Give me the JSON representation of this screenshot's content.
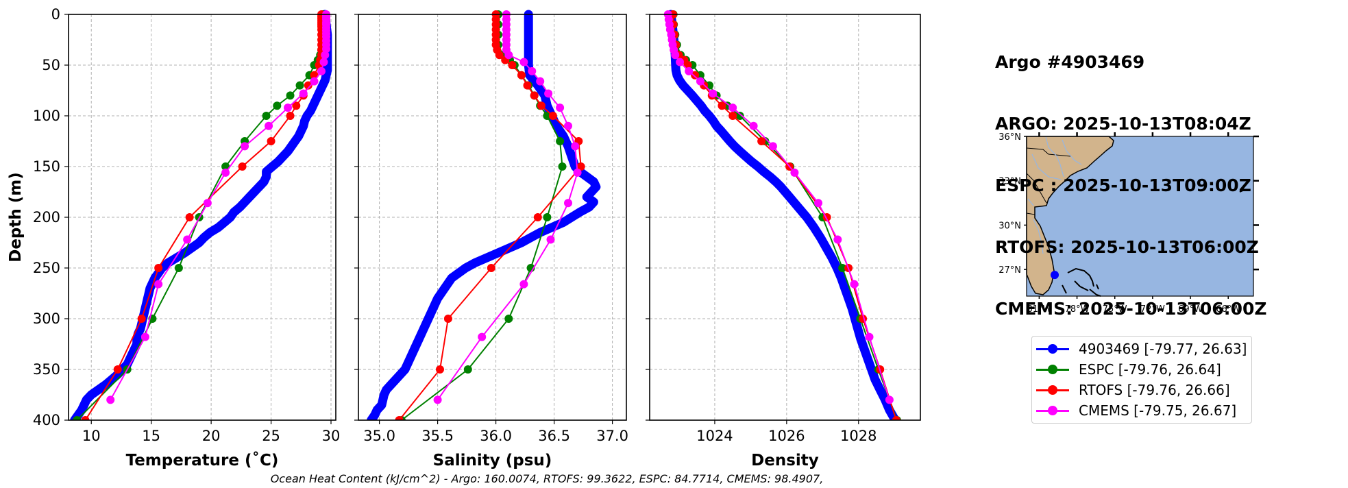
{
  "header": {
    "lines": [
      "Argo #4903469",
      "ARGO: 2025-10-13T08:04Z",
      "ESPC : 2025-10-13T09:00Z",
      "RTOFS: 2025-10-13T06:00Z",
      "CMEMS: 2025-10-13T06:00Z"
    ]
  },
  "footer": {
    "ohc_text": "Ocean Heat Content (kJ/cm^2) - Argo: 160.0074,  RTOFS: 99.3622,  ESPC: 84.7714,  CMEMS: 98.4907,"
  },
  "legend": {
    "placement": "lower-right",
    "items": [
      {
        "label": "4903469 [-79.77, 26.63]",
        "color": "#0000ff"
      },
      {
        "label": "ESPC [-79.76, 26.64]",
        "color": "#008000"
      },
      {
        "label": "RTOFS [-79.76, 26.66]",
        "color": "#ff0000"
      },
      {
        "label": "CMEMS [-79.75, 26.67]",
        "color": "#ff00ff"
      }
    ]
  },
  "map": {
    "lat_labels": [
      "36°N",
      "33°N",
      "30°N",
      "27°N"
    ],
    "lon_labels": [
      "81°W",
      "78°W",
      "75°W",
      "72°W",
      "69°W",
      "66°W"
    ],
    "lat_range": [
      25.2,
      36.0
    ],
    "lon_range": [
      -82.0,
      -64.0
    ],
    "float_position": {
      "lon": -79.77,
      "lat": 26.63
    },
    "colors": {
      "ocean": "#97b6e1",
      "land": "#d2b48c",
      "marker": "#0000ff"
    }
  },
  "chart_data": [
    {
      "type": "line",
      "title": "",
      "xlabel": "Temperature (˚C)",
      "ylabel": "Depth (m)",
      "xlim": [
        8.1,
        30.4
      ],
      "ylim": [
        400,
        0
      ],
      "xticks": [
        10,
        15,
        20,
        25,
        30
      ],
      "yticks": [
        0,
        50,
        100,
        150,
        200,
        250,
        300,
        350,
        400
      ],
      "grid": true,
      "series": [
        {
          "name": "4903469",
          "color": "#0000ff",
          "style": "thick",
          "depth": [
            0,
            10,
            20,
            30,
            40,
            50,
            55,
            60,
            65,
            70,
            75,
            80,
            85,
            90,
            95,
            100,
            105,
            110,
            115,
            120,
            125,
            130,
            135,
            140,
            145,
            150,
            155,
            160,
            165,
            170,
            175,
            180,
            185,
            190,
            195,
            200,
            205,
            210,
            215,
            220,
            225,
            230,
            235,
            240,
            245,
            250,
            255,
            260,
            265,
            270,
            275,
            280,
            285,
            290,
            295,
            300,
            305,
            310,
            315,
            320,
            325,
            330,
            335,
            340,
            345,
            350,
            355,
            360,
            365,
            370,
            375,
            380,
            385,
            390,
            395,
            400
          ],
          "values": [
            29.5,
            29.6,
            29.7,
            29.7,
            29.7,
            29.7,
            29.7,
            29.6,
            29.5,
            29.3,
            29.1,
            28.9,
            28.7,
            28.5,
            28.3,
            28.0,
            27.8,
            27.7,
            27.5,
            27.3,
            27.0,
            26.7,
            26.4,
            26.0,
            25.6,
            25.1,
            24.6,
            24.6,
            24.4,
            24.0,
            23.6,
            23.2,
            22.8,
            22.4,
            21.9,
            21.6,
            21.1,
            20.6,
            19.9,
            19.4,
            19.0,
            18.4,
            17.8,
            17.1,
            16.4,
            15.9,
            15.6,
            15.3,
            15.1,
            14.9,
            14.8,
            14.7,
            14.6,
            14.5,
            14.4,
            14.3,
            14.2,
            14.1,
            13.9,
            13.8,
            13.8,
            13.6,
            13.4,
            13.2,
            13.0,
            12.6,
            12.2,
            11.7,
            11.2,
            10.6,
            10.0,
            9.6,
            9.4,
            9.2,
            8.9,
            8.6
          ]
        },
        {
          "name": "ESPC",
          "color": "#008000",
          "style": "marker",
          "depth": [
            0,
            2,
            5,
            10,
            15,
            20,
            25,
            30,
            35,
            40,
            45,
            50,
            60,
            70,
            80,
            90,
            100,
            125,
            150,
            200,
            250,
            300,
            350,
            400
          ],
          "values": [
            29.3,
            29.3,
            29.3,
            29.3,
            29.3,
            29.3,
            29.3,
            29.3,
            29.2,
            29.1,
            28.9,
            28.6,
            28.2,
            27.4,
            26.6,
            25.5,
            24.6,
            22.8,
            21.2,
            19.0,
            17.3,
            15.1,
            13.0,
            8.8
          ]
        },
        {
          "name": "RTOFS",
          "color": "#ff0000",
          "style": "marker",
          "depth": [
            0,
            2,
            4,
            6,
            8,
            10,
            12,
            15,
            20,
            25,
            30,
            35,
            40,
            45,
            50,
            60,
            70,
            80,
            90,
            100,
            125,
            150,
            200,
            250,
            300,
            350,
            400
          ],
          "values": [
            29.2,
            29.2,
            29.2,
            29.2,
            29.2,
            29.2,
            29.2,
            29.2,
            29.2,
            29.2,
            29.2,
            29.2,
            29.2,
            29.1,
            29.0,
            28.6,
            28.1,
            27.7,
            27.1,
            26.6,
            25.0,
            22.6,
            18.2,
            15.6,
            14.2,
            12.2,
            9.5
          ]
        },
        {
          "name": "CMEMS",
          "color": "#ff00ff",
          "style": "marker",
          "depth": [
            0,
            1,
            3,
            5,
            8,
            10,
            13,
            16,
            19,
            22,
            26,
            30,
            34,
            40,
            47,
            56,
            66,
            78,
            92,
            110,
            130,
            156,
            186,
            222,
            266,
            318,
            380
          ],
          "values": [
            29.6,
            29.6,
            29.6,
            29.6,
            29.6,
            29.6,
            29.6,
            29.6,
            29.6,
            29.6,
            29.6,
            29.6,
            29.6,
            29.5,
            29.4,
            29.2,
            28.6,
            27.7,
            26.4,
            24.8,
            22.8,
            21.2,
            19.7,
            18.0,
            15.6,
            14.5,
            11.6
          ]
        }
      ]
    },
    {
      "type": "line",
      "title": "",
      "xlabel": "Salinity (psu)",
      "ylabel": "",
      "xlim": [
        34.82,
        37.12
      ],
      "ylim": [
        400,
        0
      ],
      "xticks": [
        35.0,
        35.5,
        36.0,
        36.5,
        37.0
      ],
      "yticks": [
        0,
        50,
        100,
        150,
        200,
        250,
        300,
        350,
        400
      ],
      "grid": true,
      "series": [
        {
          "name": "4903469",
          "color": "#0000ff",
          "style": "thick",
          "depth": [
            0,
            20,
            40,
            50,
            60,
            70,
            80,
            90,
            100,
            110,
            120,
            130,
            140,
            150,
            155,
            160,
            165,
            170,
            175,
            180,
            185,
            190,
            195,
            200,
            205,
            210,
            215,
            220,
            225,
            230,
            235,
            240,
            245,
            250,
            255,
            260,
            270,
            280,
            290,
            300,
            310,
            320,
            330,
            340,
            350,
            360,
            365,
            370,
            375,
            380,
            385,
            390,
            395,
            400
          ],
          "values": [
            36.28,
            36.28,
            36.28,
            36.28,
            36.29,
            36.36,
            36.42,
            36.44,
            36.48,
            36.52,
            36.58,
            36.62,
            36.65,
            36.68,
            36.72,
            36.78,
            36.84,
            36.86,
            36.82,
            36.78,
            36.84,
            36.8,
            36.72,
            36.65,
            36.58,
            36.48,
            36.38,
            36.3,
            36.22,
            36.12,
            36.02,
            35.92,
            35.82,
            35.74,
            35.68,
            35.62,
            35.56,
            35.5,
            35.46,
            35.42,
            35.38,
            35.34,
            35.3,
            35.26,
            35.22,
            35.14,
            35.1,
            35.06,
            35.04,
            35.03,
            35.02,
            34.98,
            34.96,
            34.93
          ]
        },
        {
          "name": "ESPC",
          "color": "#008000",
          "style": "marker",
          "depth": [
            0,
            10,
            20,
            30,
            40,
            45,
            50,
            60,
            70,
            80,
            90,
            100,
            125,
            150,
            200,
            250,
            300,
            350,
            400
          ],
          "values": [
            36.02,
            36.02,
            36.02,
            36.02,
            36.06,
            36.12,
            36.16,
            36.22,
            36.28,
            36.33,
            36.38,
            36.44,
            36.55,
            36.57,
            36.44,
            36.3,
            36.11,
            35.76,
            35.19
          ]
        },
        {
          "name": "RTOFS",
          "color": "#ff0000",
          "style": "marker",
          "depth": [
            0,
            5,
            10,
            15,
            20,
            25,
            30,
            35,
            40,
            45,
            50,
            60,
            70,
            80,
            90,
            100,
            125,
            150,
            200,
            250,
            300,
            350,
            400
          ],
          "values": [
            36.0,
            36.0,
            36.0,
            36.0,
            36.0,
            36.0,
            36.0,
            36.01,
            36.03,
            36.08,
            36.14,
            36.22,
            36.27,
            36.33,
            36.39,
            36.49,
            36.71,
            36.73,
            36.36,
            35.96,
            35.59,
            35.52,
            35.17
          ]
        },
        {
          "name": "CMEMS",
          "color": "#ff00ff",
          "style": "marker",
          "depth": [
            0,
            5,
            10,
            15,
            20,
            25,
            30,
            35,
            40,
            47,
            56,
            66,
            78,
            92,
            110,
            130,
            156,
            186,
            222,
            266,
            318,
            380
          ],
          "values": [
            36.09,
            36.09,
            36.09,
            36.09,
            36.09,
            36.09,
            36.09,
            36.09,
            36.11,
            36.24,
            36.31,
            36.38,
            36.45,
            36.55,
            36.62,
            36.68,
            36.7,
            36.62,
            36.47,
            36.24,
            35.88,
            35.5
          ]
        }
      ]
    },
    {
      "type": "line",
      "title": "",
      "xlabel": "Density",
      "ylabel": "",
      "xlim": [
        1022.19,
        1029.72
      ],
      "ylim": [
        400,
        0
      ],
      "xticks": [
        1024,
        1026,
        1028
      ],
      "yticks": [
        0,
        50,
        100,
        150,
        200,
        250,
        300,
        350,
        400
      ],
      "grid": true,
      "series": [
        {
          "name": "4903469",
          "color": "#0000ff",
          "style": "thick",
          "depth": [
            0,
            10,
            20,
            30,
            40,
            50,
            55,
            60,
            65,
            70,
            75,
            80,
            85,
            90,
            95,
            100,
            105,
            110,
            115,
            120,
            125,
            130,
            135,
            140,
            145,
            150,
            155,
            160,
            165,
            170,
            175,
            180,
            185,
            190,
            195,
            200,
            210,
            220,
            230,
            240,
            250,
            260,
            270,
            280,
            290,
            300,
            310,
            320,
            330,
            340,
            350,
            360,
            370,
            380,
            390,
            400
          ],
          "values": [
            1022.78,
            1022.82,
            1022.85,
            1022.88,
            1022.9,
            1022.91,
            1022.92,
            1022.95,
            1023.02,
            1023.12,
            1023.25,
            1023.38,
            1023.5,
            1023.62,
            1023.72,
            1023.85,
            1023.96,
            1024.05,
            1024.18,
            1024.3,
            1024.42,
            1024.55,
            1024.7,
            1024.86,
            1025.02,
            1025.2,
            1025.36,
            1025.54,
            1025.7,
            1025.84,
            1025.96,
            1026.08,
            1026.2,
            1026.32,
            1026.44,
            1026.56,
            1026.76,
            1026.94,
            1027.1,
            1027.26,
            1027.4,
            1027.52,
            1027.62,
            1027.72,
            1027.82,
            1027.9,
            1027.98,
            1028.06,
            1028.16,
            1028.26,
            1028.36,
            1028.46,
            1028.6,
            1028.74,
            1028.86,
            1029.02
          ]
        },
        {
          "name": "ESPC",
          "color": "#008000",
          "style": "marker",
          "depth": [
            0,
            10,
            20,
            30,
            40,
            45,
            50,
            60,
            70,
            80,
            90,
            100,
            125,
            150,
            200,
            250,
            300,
            350,
            400
          ],
          "values": [
            1022.85,
            1022.86,
            1022.9,
            1022.95,
            1023.05,
            1023.2,
            1023.38,
            1023.6,
            1023.85,
            1024.05,
            1024.35,
            1024.7,
            1025.4,
            1026.1,
            1027.0,
            1027.55,
            1028.05,
            1028.55,
            1029.07
          ]
        },
        {
          "name": "RTOFS",
          "color": "#ff0000",
          "style": "marker",
          "depth": [
            0,
            10,
            20,
            30,
            40,
            45,
            50,
            60,
            70,
            80,
            90,
            100,
            125,
            150,
            200,
            250,
            300,
            350,
            400
          ],
          "values": [
            1022.84,
            1022.85,
            1022.88,
            1022.92,
            1023.0,
            1023.15,
            1023.25,
            1023.45,
            1023.7,
            1023.92,
            1024.2,
            1024.5,
            1025.3,
            1026.08,
            1027.12,
            1027.72,
            1028.12,
            1028.6,
            1029.05
          ]
        },
        {
          "name": "CMEMS",
          "color": "#ff00ff",
          "style": "marker",
          "depth": [
            0,
            5,
            10,
            15,
            20,
            25,
            30,
            35,
            40,
            47,
            56,
            66,
            78,
            92,
            110,
            130,
            156,
            186,
            222,
            266,
            318,
            380
          ],
          "values": [
            1022.7,
            1022.72,
            1022.74,
            1022.76,
            1022.79,
            1022.81,
            1022.83,
            1022.86,
            1022.9,
            1023.03,
            1023.28,
            1023.6,
            1023.95,
            1024.5,
            1025.08,
            1025.62,
            1026.22,
            1026.88,
            1027.42,
            1027.88,
            1028.3,
            1028.86
          ]
        }
      ]
    }
  ]
}
